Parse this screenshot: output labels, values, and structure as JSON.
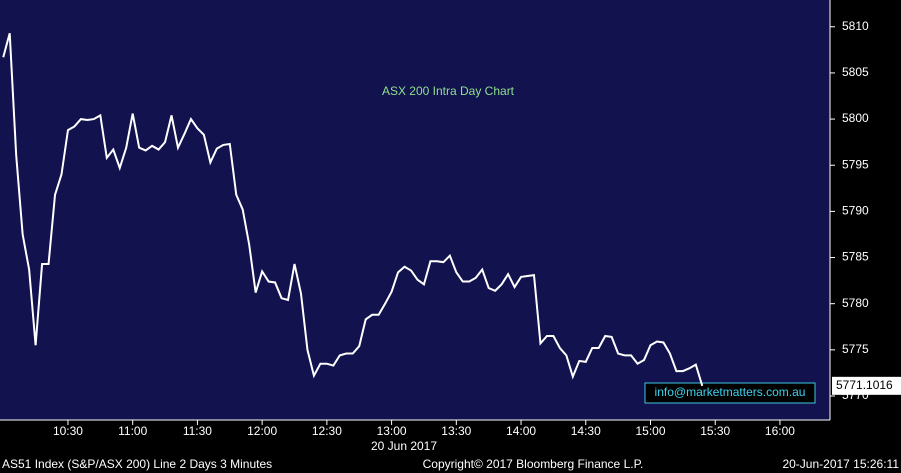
{
  "chart_data": {
    "type": "line",
    "title": "ASX 200 Intra Day Chart",
    "x_label": "20 Jun 2017",
    "footer_left": "AS51 Index (S&P/ASX 200) Line 2 Days 3 Minutes",
    "footer_center": "Copyright© 2017 Bloomberg Finance L.P.",
    "footer_right": "20-Jun-2017 15:26:11",
    "annotation": "info@marketmatters.com.au",
    "color": "#ffffff",
    "x": [
      600,
      603,
      606,
      609,
      612,
      615,
      618,
      621,
      624,
      627,
      630,
      633,
      636,
      639,
      642,
      645,
      648,
      651,
      654,
      657,
      660,
      663,
      666,
      669,
      672,
      675,
      678,
      681,
      684,
      687,
      690,
      693,
      696,
      699,
      702,
      705,
      708,
      711,
      714,
      717,
      720,
      723,
      726,
      729,
      732,
      735,
      738,
      741,
      744,
      747,
      750,
      753,
      756,
      759,
      762,
      765,
      768,
      771,
      774,
      777,
      780,
      783,
      786,
      789,
      792,
      795,
      798,
      801,
      804,
      807,
      810,
      813,
      816,
      819,
      822,
      825,
      828,
      831,
      834,
      837,
      840,
      843,
      846,
      849,
      852,
      855,
      858,
      861,
      864,
      867,
      870,
      873,
      876,
      879,
      882,
      885,
      888,
      891,
      894,
      897,
      900,
      903,
      906,
      909,
      912,
      915,
      918,
      921,
      924
    ],
    "values": [
      5806.7,
      5809.3,
      5796.1,
      5787.5,
      5783.7,
      5775.5,
      5784.3,
      5784.3,
      5791.8,
      5794,
      5798.8,
      5799.2,
      5800,
      5799.9,
      5800,
      5800.4,
      5795.8,
      5796.7,
      5794.7,
      5796.9,
      5800.6,
      5796.9,
      5796.6,
      5797.1,
      5796.7,
      5797.5,
      5800.4,
      5796.9,
      5798.4,
      5800,
      5799,
      5798.3,
      5795.3,
      5796.8,
      5797.2,
      5797.3,
      5791.8,
      5790.2,
      5786.4,
      5781.2,
      5783.5,
      5782.4,
      5782.3,
      5780.6,
      5780.4,
      5784.3,
      5781.1,
      5775,
      5772.2,
      5773.5,
      5773.5,
      5773.3,
      5774.4,
      5774.6,
      5774.6,
      5775.4,
      5778.3,
      5778.8,
      5778.8,
      5780,
      5781.3,
      5783.4,
      5784,
      5783.6,
      5782.6,
      5782.1,
      5784.6,
      5784.6,
      5784.5,
      5785.2,
      5783.4,
      5782.4,
      5782.4,
      5782.8,
      5783.7,
      5781.7,
      5781.4,
      5782.1,
      5783.2,
      5781.8,
      5782.9,
      5783,
      5783.1,
      5775.7,
      5776.5,
      5776.5,
      5775.2,
      5774.4,
      5772.1,
      5773.8,
      5773.7,
      5775.2,
      5775.2,
      5776.5,
      5776.4,
      5774.6,
      5774.4,
      5774.4,
      5773.5,
      5773.9,
      5775.5,
      5775.9,
      5775.8,
      5774.6,
      5772.7,
      5772.7,
      5773,
      5773.4,
      5771.1016
    ],
    "xlim": [
      598.5,
      983.2
    ],
    "xticks": [
      {
        "value": 630,
        "label": "10:30"
      },
      {
        "value": 660,
        "label": "11:00"
      },
      {
        "value": 690,
        "label": "11:30"
      },
      {
        "value": 720,
        "label": "12:00"
      },
      {
        "value": 750,
        "label": "12:30"
      },
      {
        "value": 780,
        "label": "13:00"
      },
      {
        "value": 810,
        "label": "13:30"
      },
      {
        "value": 840,
        "label": "14:00"
      },
      {
        "value": 870,
        "label": "14:30"
      },
      {
        "value": 900,
        "label": "15:00"
      },
      {
        "value": 930,
        "label": "15:30"
      },
      {
        "value": 960,
        "label": "16:00"
      }
    ],
    "ylim": [
      5767.4,
      5812.9
    ],
    "yticks": [
      5770,
      5775,
      5780,
      5785,
      5790,
      5795,
      5800,
      5805,
      5810
    ]
  }
}
